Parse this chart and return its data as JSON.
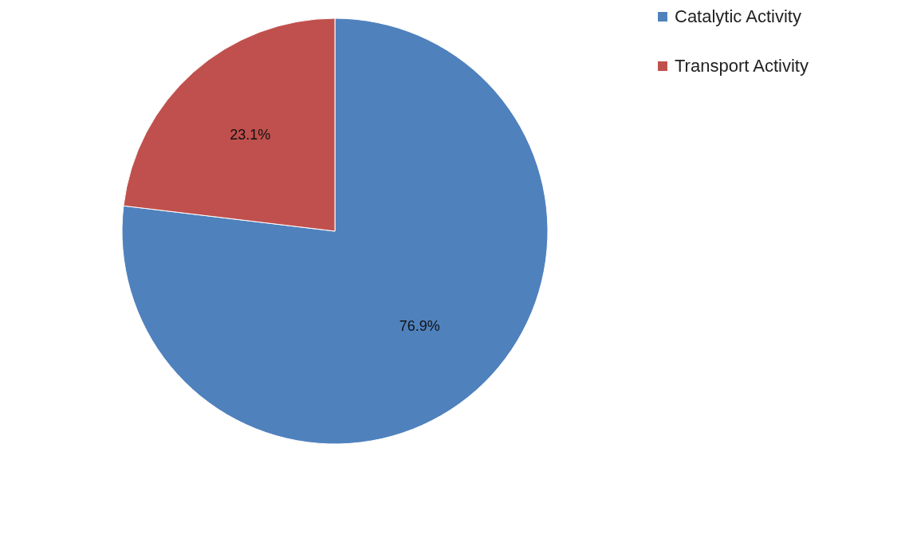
{
  "chart_data": {
    "type": "pie",
    "categories": [
      "Catalytic Activity",
      "Transport Activity"
    ],
    "values": [
      76.9,
      23.1
    ],
    "colors": [
      "#4f81bd",
      "#c0504d"
    ],
    "value_labels": [
      "76.9%",
      "23.1%"
    ],
    "legend": "right"
  }
}
